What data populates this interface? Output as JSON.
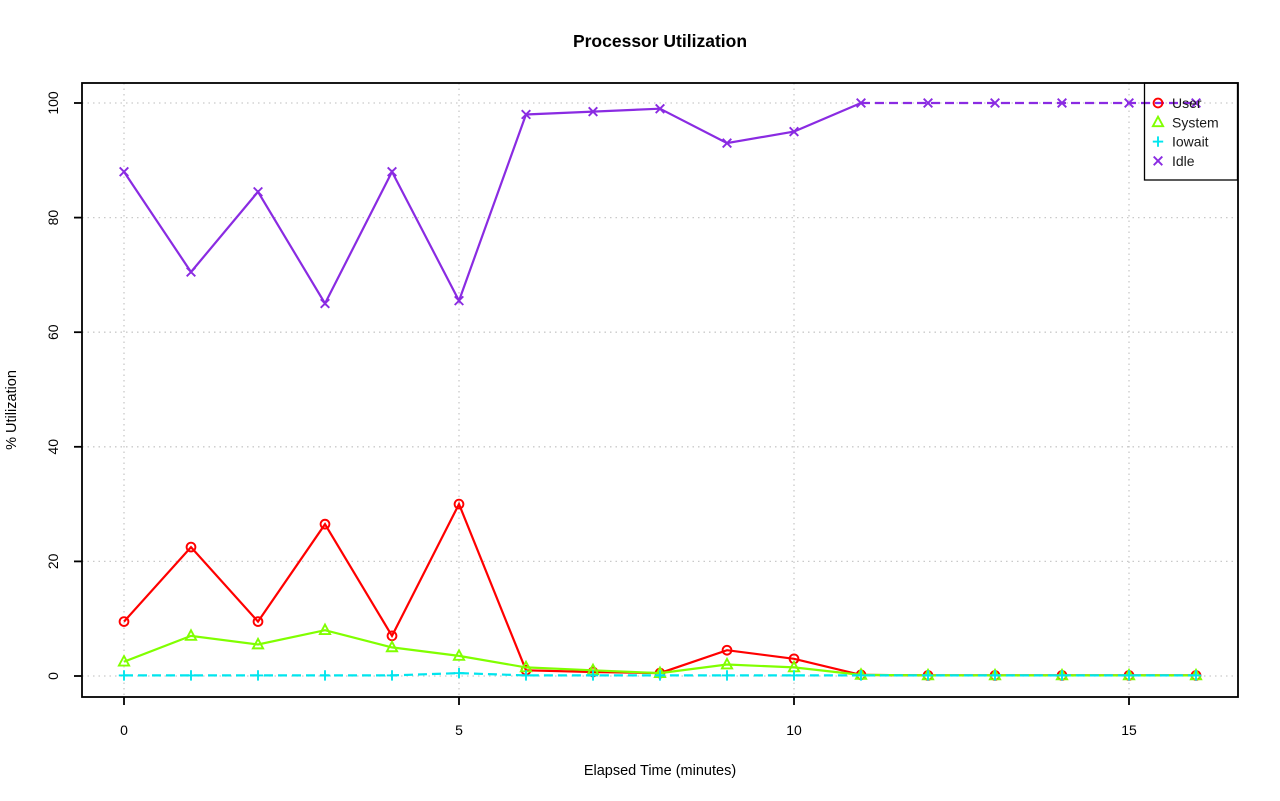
{
  "chart_data": {
    "type": "line",
    "title": "Processor Utilization",
    "xlabel": "Elapsed Time (minutes)",
    "ylabel": "% Utilization",
    "x": [
      0,
      1,
      2,
      3,
      4,
      5,
      6,
      7,
      8,
      9,
      10,
      11,
      12,
      13,
      14,
      15,
      16
    ],
    "xlim": [
      0,
      16
    ],
    "ylim": [
      0,
      100
    ],
    "xticks": [
      0,
      5,
      10,
      15
    ],
    "yticks": [
      0,
      20,
      40,
      60,
      80,
      100
    ],
    "grid": {
      "show": true,
      "style": "dotted",
      "color": "#c9c9c9"
    },
    "legend": {
      "position": "topright",
      "border": true,
      "labels": [
        "User",
        "System",
        "Iowait",
        "Idle"
      ]
    },
    "series": [
      {
        "name": "User",
        "color": "#ff0000",
        "marker": "circle",
        "linestyle": "solid",
        "values": [
          9.5,
          22.5,
          9.5,
          26.5,
          7,
          30,
          1,
          0.7,
          0.5,
          4.5,
          3,
          0.2,
          0.1,
          0.1,
          0.1,
          0.1,
          0.1
        ]
      },
      {
        "name": "System",
        "color": "#80ff00",
        "marker": "triangle",
        "linestyle": "solid",
        "values": [
          2.5,
          7,
          5.5,
          8,
          5,
          3.5,
          1.5,
          1,
          0.5,
          2,
          1.5,
          0.2,
          0.1,
          0.1,
          0.1,
          0.1,
          0.1
        ]
      },
      {
        "name": "Iowait",
        "color": "#00e5ee",
        "marker": "plus",
        "linestyle": "dashed",
        "values": [
          0.1,
          0.1,
          0.1,
          0.1,
          0.1,
          0.5,
          0.1,
          0.1,
          0.1,
          0.1,
          0.1,
          0.1,
          0.1,
          0.1,
          0.1,
          0.1,
          0.1
        ]
      },
      {
        "name": "Idle",
        "color": "#8a2be2",
        "marker": "x",
        "linestyle": "solid",
        "dash_from_index": 11,
        "values": [
          88,
          70.5,
          84.5,
          65,
          88,
          65.5,
          98,
          98.5,
          99,
          93,
          95,
          100,
          100,
          100,
          100,
          100,
          100
        ]
      }
    ]
  }
}
